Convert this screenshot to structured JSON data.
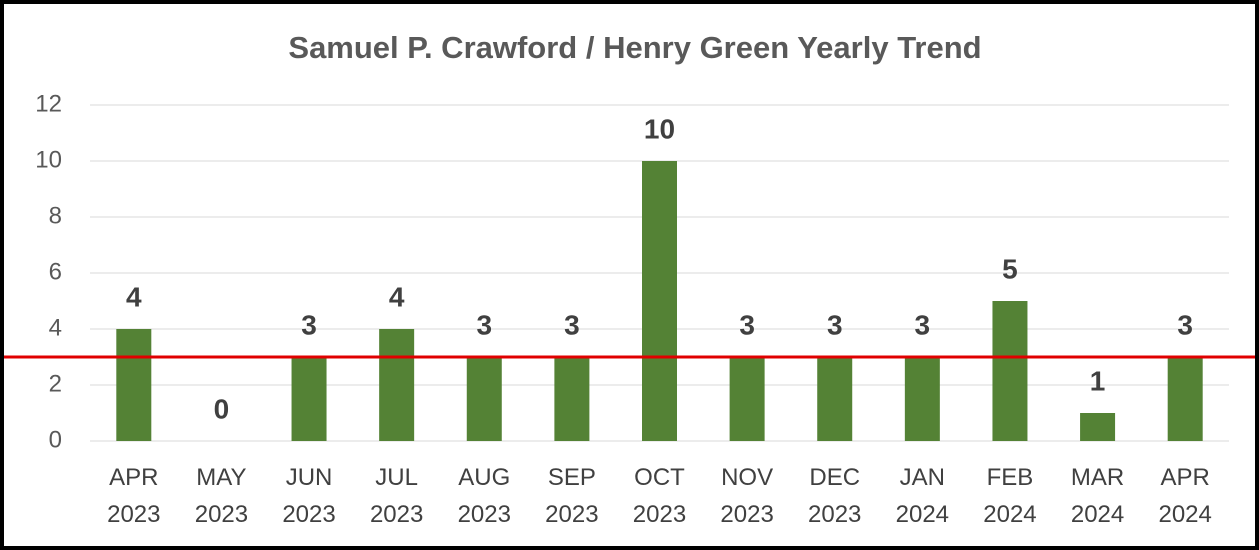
{
  "chart_data": {
    "type": "bar",
    "title": "Samuel P. Crawford / Henry Green Yearly Trend",
    "categories": [
      "APR 2023",
      "MAY 2023",
      "JUN 2023",
      "JUL 2023",
      "AUG 2023",
      "SEP 2023",
      "OCT 2023",
      "NOV 2023",
      "DEC 2023",
      "JAN 2024",
      "FEB 2024",
      "MAR 2024",
      "APR 2024"
    ],
    "values": [
      4,
      0,
      3,
      4,
      3,
      3,
      10,
      3,
      3,
      3,
      5,
      1,
      3
    ],
    "color": "#548235",
    "ylim": [
      0,
      12
    ],
    "yticks": [
      0,
      2,
      4,
      6,
      8,
      10,
      12
    ],
    "grid": true,
    "reference_line": {
      "value": 3,
      "color": "#e00000"
    }
  }
}
